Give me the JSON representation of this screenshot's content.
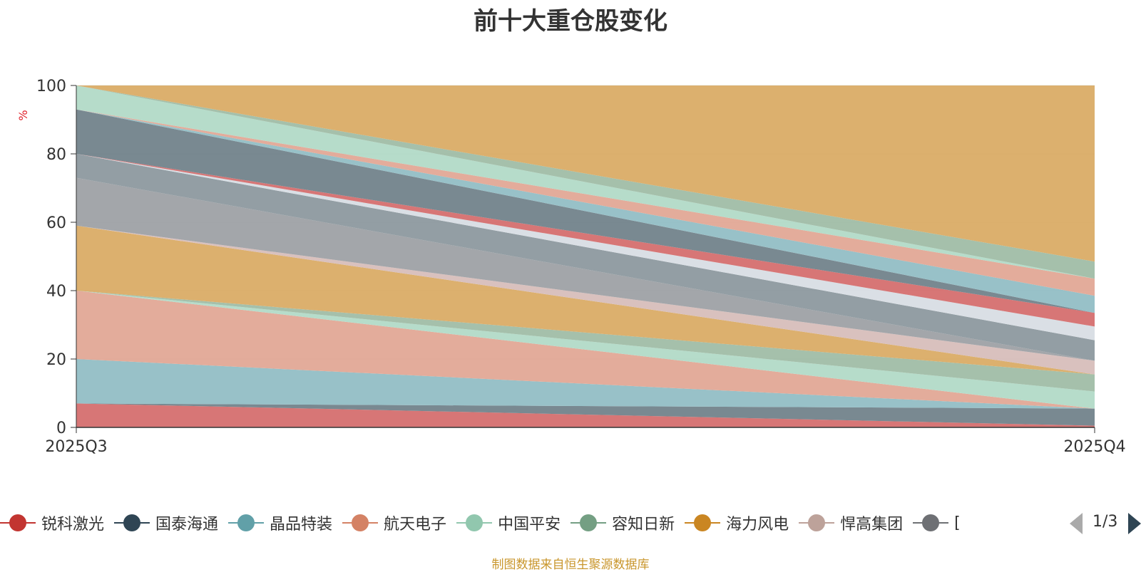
{
  "chart_data": {
    "type": "area",
    "stacked": true,
    "title": "前十大重仓股变化",
    "ylabel": "%",
    "x": [
      "2025Q3",
      "2025Q4"
    ],
    "ylim": [
      0,
      100
    ],
    "yticks": [
      0,
      20,
      40,
      60,
      80,
      100
    ],
    "grid": true,
    "series": [
      {
        "values": [
          7.0,
          0.5
        ],
        "color": "#d46a6a"
      },
      {
        "values": [
          0.0,
          5.0
        ],
        "color": "#6e7f88"
      },
      {
        "values": [
          13.0,
          0.0
        ],
        "color": "#8fbcc3"
      },
      {
        "values": [
          20.0,
          0.0
        ],
        "color": "#e1a592"
      },
      {
        "values": [
          0.0,
          5.0
        ],
        "color": "#b0d9c6"
      },
      {
        "values": [
          0.0,
          5.0
        ],
        "color": "#9dbba4"
      },
      {
        "values": [
          19.0,
          0.0
        ],
        "color": "#d9a962"
      },
      {
        "values": [
          0.0,
          4.0
        ],
        "color": "#d6bcb8"
      },
      {
        "values": [
          14.0,
          0.0
        ],
        "color": "#9b9ea3"
      },
      {
        "values": [
          7.0,
          6.0
        ],
        "color": "#8a969c"
      },
      {
        "values": [
          0.0,
          4.0
        ],
        "color": "#d7dce3"
      },
      {
        "values": [
          0.0,
          4.0
        ],
        "color": "#d46a6a"
      },
      {
        "values": [
          13.0,
          0.0
        ],
        "color": "#6e7f88"
      },
      {
        "values": [
          0.0,
          5.0
        ],
        "color": "#8fbcc3"
      },
      {
        "values": [
          0.0,
          5.0
        ],
        "color": "#e1a592"
      },
      {
        "values": [
          7.0,
          0.0
        ],
        "color": "#b0d9c6"
      },
      {
        "values": [
          0.0,
          5.0
        ],
        "color": "#9dbba4"
      },
      {
        "values": [
          0.0,
          51.5
        ],
        "color": "#d9a962"
      }
    ]
  },
  "legend": {
    "items": [
      {
        "name": "锐科激光",
        "color": "#c23531"
      },
      {
        "name": "国泰海通",
        "color": "#2f4554"
      },
      {
        "name": "晶品特装",
        "color": "#61a0a8"
      },
      {
        "name": "航天电子",
        "color": "#d48265"
      },
      {
        "name": "中国平安",
        "color": "#91c7ae"
      },
      {
        "name": "容知日新",
        "color": "#749f83"
      },
      {
        "name": "海力风电",
        "color": "#ca8622"
      },
      {
        "name": "悍高集团",
        "color": "#bda29a"
      },
      {
        "name": "[",
        "color": "#6e7074"
      }
    ],
    "page": "1/3"
  },
  "source": "制图数据来自恒生聚源数据库"
}
